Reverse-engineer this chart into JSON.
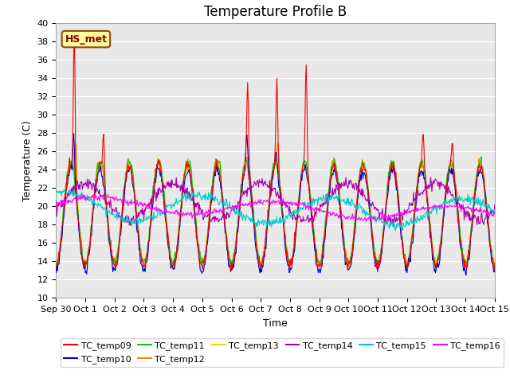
{
  "title": "Temperature Profile B",
  "xlabel": "Time",
  "ylabel": "Temperature (C)",
  "ylim": [
    10,
    40
  ],
  "yticks": [
    10,
    12,
    14,
    16,
    18,
    20,
    22,
    24,
    26,
    28,
    30,
    32,
    34,
    36,
    38,
    40
  ],
  "annotation": "HS_met",
  "series_colors": {
    "TC_temp09": "#FF0000",
    "TC_temp10": "#0000CC",
    "TC_temp11": "#00CC00",
    "TC_temp12": "#FF8800",
    "TC_temp13": "#DDDD00",
    "TC_temp14": "#AA00AA",
    "TC_temp15": "#00CCCC",
    "TC_temp16": "#FF00FF"
  },
  "plot_bg_color": "#E8E8E8",
  "title_fontsize": 12,
  "axis_label_fontsize": 9,
  "tick_label_fontsize": 8,
  "x_tick_labels": [
    "Sep 30",
    "Oct 1",
    "Oct 2",
    "Oct 3",
    "Oct 4",
    "Oct 5",
    "Oct 6",
    "Oct 7",
    "Oct 8",
    "Oct 9",
    "Oct 10",
    "Oct 11",
    "Oct 12",
    "Oct 13",
    "Oct 14",
    "Oct 15"
  ],
  "legend_row1": [
    "TC_temp09",
    "TC_temp10",
    "TC_temp11",
    "TC_temp12",
    "TC_temp13",
    "TC_temp14"
  ],
  "legend_row2": [
    "TC_temp15",
    "TC_temp16"
  ]
}
